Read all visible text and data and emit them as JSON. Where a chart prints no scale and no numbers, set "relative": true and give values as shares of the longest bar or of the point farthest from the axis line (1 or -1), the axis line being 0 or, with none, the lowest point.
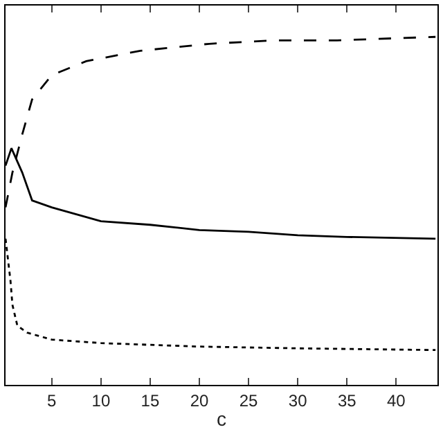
{
  "chart_data": {
    "type": "line",
    "xlabel": "c",
    "relative": true,
    "xlim": [
      0.3,
      44.2
    ],
    "xticks": [
      5,
      10,
      15,
      20,
      25,
      30,
      35,
      40
    ],
    "marker": "none",
    "series": [
      {
        "color": "#000000",
        "line_style": "dotted",
        "x": [
          0.3,
          0.8,
          1,
          1.5,
          2.5,
          5,
          10,
          20,
          30,
          44
        ],
        "values": [
          0.42,
          0.3,
          0.23,
          0.17,
          0.15,
          0.13,
          0.12,
          0.11,
          0.105,
          0.1
        ]
      },
      {
        "color": "#000000",
        "line_style": "dashed",
        "x": [
          0.3,
          1,
          2,
          3,
          5,
          8.5,
          14,
          21,
          27.6,
          34,
          44
        ],
        "values": [
          0.51,
          0.61,
          0.72,
          0.82,
          0.89,
          0.93,
          0.96,
          0.98,
          0.99,
          0.99,
          1.0
        ]
      },
      {
        "color": "#000000",
        "line_style": "solid",
        "x": [
          0.3,
          0.9,
          2,
          3,
          5,
          10,
          15,
          20,
          25,
          30,
          35,
          44
        ],
        "values": [
          0.63,
          0.68,
          0.61,
          0.53,
          0.51,
          0.47,
          0.46,
          0.445,
          0.44,
          0.43,
          0.425,
          0.42
        ]
      }
    ]
  }
}
